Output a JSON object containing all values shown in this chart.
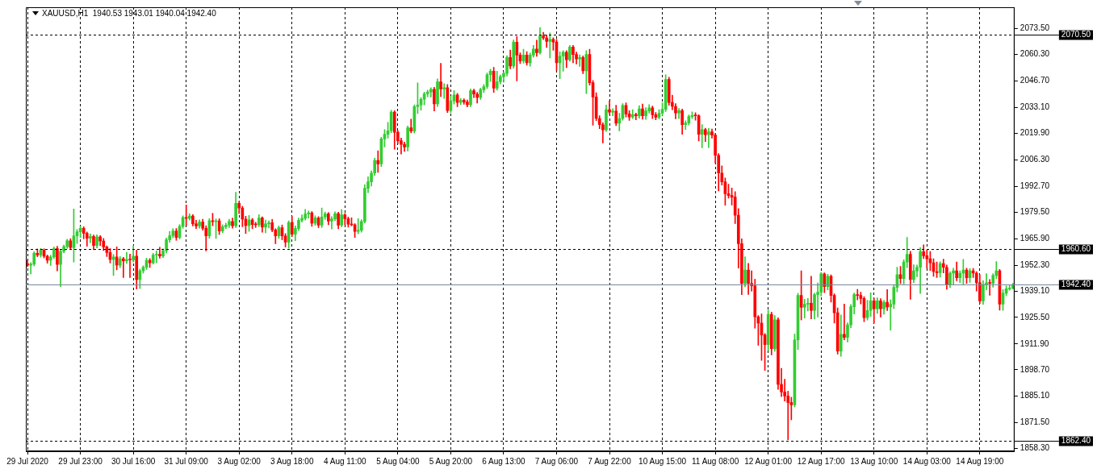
{
  "chart_data": {
    "type": "candlestick",
    "title": "XAUUSD,H1  1940.53 1943.01 1940.04 1942.40",
    "categories": [
      "29 Jul 2020",
      null,
      null,
      null,
      null,
      null,
      null,
      null,
      null,
      null,
      null,
      null,
      null,
      null,
      null,
      null,
      "29 Jul 23:00",
      null,
      null,
      null,
      null,
      null,
      null,
      null,
      null,
      null,
      null,
      null,
      null,
      null,
      null,
      null,
      "30 Jul 16:00",
      null,
      null,
      null,
      null,
      null,
      null,
      null,
      null,
      null,
      null,
      null,
      null,
      null,
      null,
      null,
      "31 Jul 09:00",
      null,
      null,
      null,
      null,
      null,
      null,
      null,
      null,
      null,
      null,
      null,
      null,
      null,
      null,
      null,
      "3 Aug 02:00",
      null,
      null,
      null,
      null,
      null,
      null,
      null,
      null,
      null,
      null,
      null,
      null,
      null,
      null,
      null,
      "3 Aug 18:00",
      null,
      null,
      null,
      null,
      null,
      null,
      null,
      null,
      null,
      null,
      null,
      null,
      null,
      null,
      null,
      "4 Aug 11:00",
      null,
      null,
      null,
      null,
      null,
      null,
      null,
      null,
      null,
      null,
      null,
      null,
      null,
      null,
      null,
      "5 Aug 04:00",
      null,
      null,
      null,
      null,
      null,
      null,
      null,
      null,
      null,
      null,
      null,
      null,
      null,
      null,
      null,
      "5 Aug 20:00",
      null,
      null,
      null,
      null,
      null,
      null,
      null,
      null,
      null,
      null,
      null,
      null,
      null,
      null,
      null,
      "6 Aug 13:00",
      null,
      null,
      null,
      null,
      null,
      null,
      null,
      null,
      null,
      null,
      null,
      null,
      null,
      null,
      null,
      "7 Aug 06:00",
      null,
      null,
      null,
      null,
      null,
      null,
      null,
      null,
      null,
      null,
      null,
      null,
      null,
      null,
      null,
      "7 Aug 22:00",
      null,
      null,
      null,
      null,
      null,
      null,
      null,
      null,
      null,
      null,
      null,
      null,
      null,
      null,
      null,
      "10 Aug 15:00",
      null,
      null,
      null,
      null,
      null,
      null,
      null,
      null,
      null,
      null,
      null,
      null,
      null,
      null,
      null,
      "11 Aug 08:00",
      null,
      null,
      null,
      null,
      null,
      null,
      null,
      null,
      null,
      null,
      null,
      null,
      null,
      null,
      null,
      "12 Aug 01:00",
      null,
      null,
      null,
      null,
      null,
      null,
      null,
      null,
      null,
      null,
      null,
      null,
      null,
      null,
      null,
      "12 Aug 17:00",
      null,
      null,
      null,
      null,
      null,
      null,
      null,
      null,
      null,
      null,
      null,
      null,
      null,
      null,
      null,
      "13 Aug 10:00",
      null,
      null,
      null,
      null,
      null,
      null,
      null,
      null,
      null,
      null,
      null,
      null,
      null,
      null,
      null,
      "14 Aug 03:00",
      null,
      null,
      null,
      null,
      null,
      null,
      null,
      null,
      null,
      null,
      null,
      null,
      null,
      null,
      null,
      "14 Aug 19:00",
      null,
      null,
      null,
      null,
      null,
      null,
      null,
      null,
      null,
      null
    ],
    "ohlc": [
      [
        1953.1,
        1955.0,
        1951.5,
        1952.3
      ],
      [
        1952.3,
        1953.6,
        1947.8,
        1952.8
      ],
      [
        1952.8,
        1959.2,
        1951.9,
        1958.4
      ],
      [
        1958.4,
        1960.6,
        1956.6,
        1957.5
      ],
      [
        1957.5,
        1960.9,
        1956.4,
        1960.0
      ],
      [
        1960.0,
        1960.7,
        1956.0,
        1956.9
      ],
      [
        1956.9,
        1957.5,
        1953.3,
        1954.8
      ],
      [
        1954.8,
        1957.4,
        1952.1,
        1956.5
      ],
      [
        1956.5,
        1961.6,
        1955.7,
        1960.8
      ],
      [
        1960.8,
        1962.0,
        1949.4,
        1952.7
      ],
      [
        1952.7,
        1960.3,
        1941.3,
        1959.4
      ],
      [
        1959.4,
        1962.6,
        1958.5,
        1961.8
      ],
      [
        1961.8,
        1965.6,
        1960.9,
        1964.8
      ],
      [
        1964.8,
        1965.9,
        1960.4,
        1961.3
      ],
      [
        1961.3,
        1981.1,
        1953.9,
        1967.3
      ],
      [
        1967.3,
        1970.6,
        1963.4,
        1969.4
      ],
      [
        1969.4,
        1972.3,
        1966.4,
        1971.2
      ],
      [
        1971.2,
        1972.0,
        1965.8,
        1968.6
      ],
      [
        1968.6,
        1969.3,
        1962.0,
        1966.1
      ],
      [
        1966.1,
        1968.3,
        1963.8,
        1967.0
      ],
      [
        1967.0,
        1967.8,
        1960.2,
        1962.4
      ],
      [
        1962.4,
        1967.9,
        1961.1,
        1966.8
      ],
      [
        1966.8,
        1967.5,
        1962.3,
        1964.7
      ],
      [
        1964.7,
        1966.0,
        1959.8,
        1961.6
      ],
      [
        1961.6,
        1962.2,
        1956.7,
        1958.8
      ],
      [
        1958.8,
        1960.8,
        1953.4,
        1955.2
      ],
      [
        1955.2,
        1957.8,
        1947.0,
        1956.5
      ],
      [
        1956.5,
        1961.7,
        1949.9,
        1952.3
      ],
      [
        1952.3,
        1956.7,
        1951.0,
        1955.6
      ],
      [
        1955.6,
        1956.3,
        1946.0,
        1954.5
      ],
      [
        1954.5,
        1958.9,
        1953.2,
        1955.2
      ],
      [
        1955.2,
        1958.0,
        1946.0,
        1955.0
      ],
      [
        1955.0,
        1962.3,
        1953.9,
        1956.9
      ],
      [
        1956.9,
        1960.0,
        1940.1,
        1944.9
      ],
      [
        1944.9,
        1950.3,
        1940.3,
        1949.4
      ],
      [
        1949.4,
        1952.0,
        1948.2,
        1951.2
      ],
      [
        1951.2,
        1955.9,
        1950.1,
        1954.8
      ],
      [
        1954.8,
        1955.7,
        1951.1,
        1953.5
      ],
      [
        1953.5,
        1958.4,
        1952.8,
        1957.5
      ],
      [
        1957.5,
        1959.6,
        1953.5,
        1957.9
      ],
      [
        1957.9,
        1961.5,
        1955.9,
        1957.0
      ],
      [
        1957.0,
        1960.6,
        1956.2,
        1959.7
      ],
      [
        1959.7,
        1966.2,
        1958.5,
        1965.3
      ],
      [
        1965.3,
        1969.6,
        1964.0,
        1967.4
      ],
      [
        1967.4,
        1971.0,
        1966.3,
        1969.8
      ],
      [
        1969.8,
        1971.1,
        1965.0,
        1966.5
      ],
      [
        1966.5,
        1973.1,
        1965.7,
        1972.2
      ],
      [
        1972.2,
        1977.6,
        1971.2,
        1976.7
      ],
      [
        1976.7,
        1983.2,
        1972.6,
        1976.3
      ],
      [
        1976.3,
        1978.7,
        1975.4,
        1977.5
      ],
      [
        1977.5,
        1978.2,
        1972.4,
        1973.5
      ],
      [
        1973.5,
        1975.3,
        1971.0,
        1972.4
      ],
      [
        1972.4,
        1975.5,
        1971.3,
        1974.4
      ],
      [
        1974.4,
        1975.8,
        1970.2,
        1971.2
      ],
      [
        1971.2,
        1972.5,
        1959.6,
        1967.3
      ],
      [
        1967.3,
        1976.2,
        1966.1,
        1975.1
      ],
      [
        1975.1,
        1978.9,
        1972.5,
        1974.6
      ],
      [
        1974.6,
        1976.0,
        1966.0,
        1975.0
      ],
      [
        1975.0,
        1976.1,
        1968.0,
        1969.8
      ],
      [
        1969.8,
        1973.0,
        1968.9,
        1972.0
      ],
      [
        1972.0,
        1973.9,
        1971.0,
        1972.8
      ],
      [
        1972.8,
        1975.8,
        1971.6,
        1974.7
      ],
      [
        1974.7,
        1976.4,
        1971.2,
        1972.5
      ],
      [
        1972.5,
        1989.7,
        1971.6,
        1984.0
      ],
      [
        1984.0,
        1985.0,
        1978.7,
        1981.6
      ],
      [
        1981.6,
        1982.5,
        1972.0,
        1975.9
      ],
      [
        1975.9,
        1977.4,
        1968.5,
        1972.6
      ],
      [
        1972.6,
        1977.8,
        1969.6,
        1975.5
      ],
      [
        1975.5,
        1976.3,
        1971.0,
        1973.1
      ],
      [
        1973.1,
        1974.3,
        1971.6,
        1973.0
      ],
      [
        1973.0,
        1978.2,
        1972.0,
        1976.5
      ],
      [
        1976.5,
        1977.1,
        1969.2,
        1971.8
      ],
      [
        1971.8,
        1975.4,
        1968.9,
        1973.5
      ],
      [
        1973.5,
        1975.0,
        1971.4,
        1974.0
      ],
      [
        1974.0,
        1975.8,
        1969.4,
        1970.4
      ],
      [
        1970.4,
        1971.0,
        1963.3,
        1967.3
      ],
      [
        1967.3,
        1972.4,
        1966.0,
        1971.5
      ],
      [
        1971.5,
        1972.9,
        1965.3,
        1967.3
      ],
      [
        1967.3,
        1968.5,
        1961.6,
        1964.1
      ],
      [
        1964.1,
        1975.0,
        1961.0,
        1974.2
      ],
      [
        1974.2,
        1977.3,
        1967.0,
        1968.2
      ],
      [
        1968.2,
        1972.4,
        1964.8,
        1971.1
      ],
      [
        1971.1,
        1976.5,
        1970.0,
        1975.3
      ],
      [
        1975.3,
        1978.1,
        1974.3,
        1976.3
      ],
      [
        1976.3,
        1980.9,
        1975.4,
        1978.5
      ],
      [
        1978.5,
        1980.1,
        1976.4,
        1979.1
      ],
      [
        1979.1,
        1979.8,
        1972.2,
        1973.8
      ],
      [
        1973.8,
        1977.6,
        1972.7,
        1976.5
      ],
      [
        1976.5,
        1977.2,
        1971.5,
        1972.8
      ],
      [
        1972.8,
        1981.6,
        1971.6,
        1977.0
      ],
      [
        1977.0,
        1979.5,
        1975.7,
        1978.6
      ],
      [
        1978.6,
        1979.3,
        1973.0,
        1974.9
      ],
      [
        1974.9,
        1977.2,
        1970.8,
        1976.0
      ],
      [
        1976.0,
        1979.6,
        1975.1,
        1978.7
      ],
      [
        1978.7,
        1979.4,
        1970.9,
        1972.8
      ],
      [
        1972.8,
        1980.8,
        1971.9,
        1978.1
      ],
      [
        1978.1,
        1978.8,
        1973.1,
        1976.1
      ],
      [
        1976.1,
        1977.0,
        1971.8,
        1973.3
      ],
      [
        1973.3,
        1976.6,
        1972.4,
        1973.0
      ],
      [
        1973.0,
        1973.6,
        1966.5,
        1969.6
      ],
      [
        1969.6,
        1976.2,
        1968.4,
        1970.2
      ],
      [
        1970.2,
        1975.6,
        1969.2,
        1974.7
      ],
      [
        1974.7,
        1993.6,
        1973.9,
        1991.7
      ],
      [
        1991.7,
        1997.6,
        1989.4,
        1995.0
      ],
      [
        1995.0,
        2000.6,
        1992.8,
        1999.5
      ],
      [
        1999.5,
        2007.1,
        1998.3,
        2006.0
      ],
      [
        2006.0,
        2010.9,
        1999.9,
        2004.2
      ],
      [
        2004.2,
        2017.9,
        2002.9,
        2017.0
      ],
      [
        2017.0,
        2021.8,
        2012.9,
        2019.4
      ],
      [
        2019.4,
        2025.5,
        2017.4,
        2021.2
      ],
      [
        2021.2,
        2031.7,
        2020.2,
        2030.8
      ],
      [
        2030.8,
        2031.5,
        2011.7,
        2020.4
      ],
      [
        2020.4,
        2021.3,
        2014.5,
        2016.1
      ],
      [
        2016.1,
        2017.4,
        2009.3,
        2014.2
      ],
      [
        2014.2,
        2015.4,
        2010.6,
        2012.9
      ],
      [
        2012.9,
        2023.6,
        2010.8,
        2022.7
      ],
      [
        2022.7,
        2027.2,
        2020.1,
        2021.0
      ],
      [
        2021.0,
        2034.5,
        2020.0,
        2033.6
      ],
      [
        2033.6,
        2045.7,
        2030.0,
        2034.4
      ],
      [
        2034.4,
        2038.2,
        2031.8,
        2037.3
      ],
      [
        2037.3,
        2041.0,
        2034.5,
        2040.1
      ],
      [
        2040.1,
        2042.0,
        2038.6,
        2041.1
      ],
      [
        2041.1,
        2043.3,
        2038.5,
        2042.4
      ],
      [
        2042.4,
        2043.5,
        2031.3,
        2035.0
      ],
      [
        2035.0,
        2047.8,
        2033.6,
        2046.3
      ],
      [
        2046.3,
        2055.8,
        2038.7,
        2042.6
      ],
      [
        2042.6,
        2045.3,
        2037.8,
        2043.3
      ],
      [
        2043.3,
        2044.9,
        2030.5,
        2031.6
      ],
      [
        2031.6,
        2038.9,
        2030.4,
        2036.5
      ],
      [
        2036.5,
        2041.8,
        2034.9,
        2039.5
      ],
      [
        2039.5,
        2040.4,
        2033.5,
        2035.7
      ],
      [
        2035.7,
        2037.8,
        2034.6,
        2036.9
      ],
      [
        2036.9,
        2037.6,
        2034.8,
        2035.9
      ],
      [
        2035.9,
        2037.0,
        2033.4,
        2034.6
      ],
      [
        2034.6,
        2042.6,
        2033.5,
        2041.7
      ],
      [
        2041.7,
        2042.5,
        2038.2,
        2040.0
      ],
      [
        2040.0,
        2040.9,
        2035.4,
        2038.3
      ],
      [
        2038.3,
        2043.1,
        2037.2,
        2042.2
      ],
      [
        2042.2,
        2044.9,
        2040.7,
        2043.8
      ],
      [
        2043.8,
        2050.8,
        2042.8,
        2049.9
      ],
      [
        2049.9,
        2052.8,
        2046.4,
        2051.7
      ],
      [
        2051.7,
        2053.7,
        2040.8,
        2043.0
      ],
      [
        2043.0,
        2051.7,
        2042.0,
        2046.3
      ],
      [
        2046.3,
        2049.8,
        2045.2,
        2048.9
      ],
      [
        2048.9,
        2051.5,
        2046.1,
        2050.6
      ],
      [
        2050.6,
        2059.7,
        2049.2,
        2058.8
      ],
      [
        2058.8,
        2062.6,
        2052.9,
        2054.4
      ],
      [
        2054.4,
        2067.7,
        2053.2,
        2066.6
      ],
      [
        2066.6,
        2069.5,
        2046.7,
        2060.0
      ],
      [
        2060.0,
        2061.1,
        2055.6,
        2057.0
      ],
      [
        2057.0,
        2063.0,
        2055.8,
        2060.0
      ],
      [
        2060.0,
        2061.7,
        2054.8,
        2056.0
      ],
      [
        2056.0,
        2061.0,
        2054.3,
        2060.0
      ],
      [
        2060.0,
        2065.0,
        2058.9,
        2063.1
      ],
      [
        2063.1,
        2067.6,
        2059.3,
        2061.2
      ],
      [
        2061.2,
        2074.0,
        2060.5,
        2069.8
      ],
      [
        2069.8,
        2071.7,
        2067.9,
        2068.8
      ],
      [
        2068.8,
        2070.3,
        2063.9,
        2067.0
      ],
      [
        2067.0,
        2071.4,
        2058.5,
        2068.0
      ],
      [
        2068.0,
        2068.9,
        2062.4,
        2066.7
      ],
      [
        2066.7,
        2068.0,
        2052.1,
        2056.0
      ],
      [
        2056.0,
        2061.6,
        2047.9,
        2059.5
      ],
      [
        2059.5,
        2062.3,
        2051.7,
        2061.4
      ],
      [
        2061.4,
        2062.3,
        2053.6,
        2057.6
      ],
      [
        2057.6,
        2064.9,
        2056.9,
        2064.1
      ],
      [
        2064.1,
        2064.9,
        2056.0,
        2060.3
      ],
      [
        2060.3,
        2061.5,
        2055.4,
        2058.0
      ],
      [
        2058.0,
        2060.1,
        2054.2,
        2058.8
      ],
      [
        2058.8,
        2059.6,
        2050.5,
        2051.9
      ],
      [
        2051.9,
        2062.3,
        2040.2,
        2060.3
      ],
      [
        2060.3,
        2063.0,
        2044.6,
        2045.8
      ],
      [
        2045.8,
        2047.0,
        2024.0,
        2038.5
      ],
      [
        2038.5,
        2040.7,
        2026.4,
        2027.5
      ],
      [
        2027.5,
        2028.9,
        2022.3,
        2024.3
      ],
      [
        2024.3,
        2025.3,
        2014.9,
        2021.6
      ],
      [
        2021.6,
        2034.4,
        2020.8,
        2032.0
      ],
      [
        2032.0,
        2036.6,
        2029.6,
        2030.7
      ],
      [
        2030.7,
        2032.5,
        2028.9,
        2031.3
      ],
      [
        2031.3,
        2034.3,
        2023.8,
        2025.0
      ],
      [
        2025.0,
        2030.2,
        2021.1,
        2027.5
      ],
      [
        2027.5,
        2035.1,
        2026.6,
        2034.2
      ],
      [
        2034.2,
        2035.5,
        2028.3,
        2029.8
      ],
      [
        2029.8,
        2031.5,
        2026.5,
        2028.3
      ],
      [
        2028.3,
        2032.0,
        2027.4,
        2029.5
      ],
      [
        2029.5,
        2030.3,
        2026.8,
        2028.9
      ],
      [
        2028.9,
        2034.1,
        2027.6,
        2032.4
      ],
      [
        2032.4,
        2034.9,
        2027.1,
        2028.9
      ],
      [
        2028.9,
        2033.0,
        2027.0,
        2031.4
      ],
      [
        2031.4,
        2034.6,
        2030.2,
        2032.9
      ],
      [
        2032.9,
        2033.9,
        2027.4,
        2029.4
      ],
      [
        2029.4,
        2030.6,
        2026.8,
        2028.2
      ],
      [
        2028.2,
        2032.0,
        2027.2,
        2030.2
      ],
      [
        2030.2,
        2035.5,
        2029.1,
        2032.2
      ],
      [
        2032.2,
        2049.9,
        2031.0,
        2047.5
      ],
      [
        2047.5,
        2048.6,
        2034.2,
        2035.7
      ],
      [
        2035.7,
        2039.4,
        2032.0,
        2033.7
      ],
      [
        2033.7,
        2035.1,
        2027.3,
        2030.3
      ],
      [
        2030.3,
        2032.6,
        2027.4,
        2031.5
      ],
      [
        2031.5,
        2032.3,
        2019.4,
        2024.3
      ],
      [
        2024.3,
        2026.3,
        2021.8,
        2025.2
      ],
      [
        2025.2,
        2029.3,
        2024.1,
        2028.5
      ],
      [
        2028.5,
        2030.9,
        2027.4,
        2029.0
      ],
      [
        2029.0,
        2030.5,
        2026.6,
        2028.9
      ],
      [
        2028.9,
        2029.4,
        2016.0,
        2019.4
      ],
      [
        2019.4,
        2024.4,
        2012.5,
        2021.8
      ],
      [
        2021.8,
        2022.5,
        2015.7,
        2019.2
      ],
      [
        2019.2,
        2022.4,
        2012.6,
        2020.6
      ],
      [
        2020.6,
        2022.1,
        2017.4,
        2019.0
      ],
      [
        2019.0,
        2019.9,
        2004.6,
        2008.6
      ],
      [
        2008.6,
        2009.5,
        1990.4,
        1999.5
      ],
      [
        1999.5,
        2003.2,
        1993.3,
        1995.0
      ],
      [
        1995.0,
        1997.0,
        1983.0,
        1988.9
      ],
      [
        1988.9,
        1993.8,
        1986.6,
        1988.0
      ],
      [
        1988.0,
        1991.8,
        1983.1,
        1987.2
      ],
      [
        1987.2,
        1990.0,
        1973.6,
        1977.9
      ],
      [
        1977.9,
        1981.3,
        1950.8,
        1963.3
      ],
      [
        1963.3,
        1965.8,
        1937.2,
        1942.9
      ],
      [
        1942.9,
        1956.6,
        1941.2,
        1949.8
      ],
      [
        1949.8,
        1953.2,
        1937.3,
        1942.9
      ],
      [
        1942.9,
        1949.4,
        1939.0,
        1941.7
      ],
      [
        1941.7,
        1945.1,
        1920.0,
        1925.8
      ],
      [
        1925.8,
        1926.5,
        1911.2,
        1922.6
      ],
      [
        1922.6,
        1927.3,
        1903.5,
        1916.5
      ],
      [
        1916.5,
        1917.3,
        1898.3,
        1911.6
      ],
      [
        1911.6,
        1929.3,
        1908.5,
        1927.1
      ],
      [
        1927.1,
        1928.2,
        1906.3,
        1909.5
      ],
      [
        1909.5,
        1926.5,
        1908.2,
        1924.3
      ],
      [
        1924.3,
        1925.3,
        1888.6,
        1891.2
      ],
      [
        1891.2,
        1899.4,
        1884.9,
        1887.3
      ],
      [
        1887.3,
        1893.8,
        1882.6,
        1885.2
      ],
      [
        1885.2,
        1887.7,
        1862.8,
        1881.9
      ],
      [
        1881.9,
        1884.6,
        1873.0,
        1880.7
      ],
      [
        1880.7,
        1917.0,
        1879.6,
        1914.0
      ],
      [
        1914.0,
        1937.9,
        1909.0,
        1936.8
      ],
      [
        1936.8,
        1949.4,
        1924.2,
        1930.7
      ],
      [
        1930.7,
        1934.8,
        1925.2,
        1932.3
      ],
      [
        1932.3,
        1935.3,
        1928.8,
        1932.8
      ],
      [
        1932.8,
        1946.6,
        1924.8,
        1929.1
      ],
      [
        1929.1,
        1937.9,
        1924.7,
        1937.2
      ],
      [
        1937.2,
        1943.2,
        1925.7,
        1938.4
      ],
      [
        1938.4,
        1948.6,
        1936.4,
        1947.8
      ],
      [
        1947.8,
        1948.4,
        1938.2,
        1941.3
      ],
      [
        1941.3,
        1947.6,
        1939.6,
        1946.6
      ],
      [
        1946.6,
        1947.3,
        1933.3,
        1936.8
      ],
      [
        1936.8,
        1937.6,
        1922.6,
        1927.9
      ],
      [
        1927.9,
        1930.4,
        1906.7,
        1908.3
      ],
      [
        1908.3,
        1926.8,
        1905.6,
        1916.9
      ],
      [
        1916.9,
        1932.4,
        1914.0,
        1915.3
      ],
      [
        1915.3,
        1922.8,
        1912.9,
        1921.7
      ],
      [
        1921.7,
        1932.2,
        1920.2,
        1931.0
      ],
      [
        1931.0,
        1938.0,
        1927.3,
        1937.2
      ],
      [
        1937.2,
        1939.9,
        1934.5,
        1936.8
      ],
      [
        1936.8,
        1938.4,
        1932.4,
        1935.2
      ],
      [
        1935.2,
        1936.2,
        1923.3,
        1925.4
      ],
      [
        1925.4,
        1934.3,
        1924.2,
        1929.1
      ],
      [
        1929.1,
        1938.1,
        1926.0,
        1934.0
      ],
      [
        1934.0,
        1935.3,
        1922.6,
        1929.9
      ],
      [
        1929.9,
        1935.6,
        1927.6,
        1934.0
      ],
      [
        1934.0,
        1935.1,
        1925.7,
        1929.9
      ],
      [
        1929.9,
        1934.2,
        1927.2,
        1933.3
      ],
      [
        1933.3,
        1939.8,
        1929.0,
        1930.9
      ],
      [
        1930.9,
        1934.5,
        1919.0,
        1932.3
      ],
      [
        1932.3,
        1942.4,
        1930.0,
        1940.9
      ],
      [
        1940.9,
        1951.3,
        1938.6,
        1947.4
      ],
      [
        1947.4,
        1951.7,
        1942.9,
        1945.4
      ],
      [
        1945.4,
        1955.1,
        1942.6,
        1953.9
      ],
      [
        1953.9,
        1966.5,
        1951.0,
        1957.9
      ],
      [
        1957.9,
        1959.4,
        1934.8,
        1944.9
      ],
      [
        1944.9,
        1952.5,
        1943.3,
        1949.4
      ],
      [
        1949.4,
        1952.4,
        1946.4,
        1951.2
      ],
      [
        1951.2,
        1961.3,
        1937.8,
        1959.2
      ],
      [
        1959.2,
        1962.7,
        1955.7,
        1957.1
      ],
      [
        1957.1,
        1960.0,
        1950.8,
        1955.6
      ],
      [
        1955.6,
        1959.3,
        1949.6,
        1953.5
      ],
      [
        1953.5,
        1955.6,
        1946.6,
        1949.0
      ],
      [
        1949.0,
        1953.9,
        1946.0,
        1948.4
      ],
      [
        1948.4,
        1954.0,
        1946.2,
        1953.1
      ],
      [
        1953.1,
        1955.4,
        1948.3,
        1951.2
      ],
      [
        1951.2,
        1952.4,
        1940.0,
        1942.5
      ],
      [
        1942.5,
        1949.0,
        1940.8,
        1948.2
      ],
      [
        1948.2,
        1950.7,
        1942.2,
        1949.4
      ],
      [
        1949.4,
        1953.9,
        1944.3,
        1945.8
      ],
      [
        1945.8,
        1949.4,
        1943.4,
        1948.2
      ],
      [
        1948.2,
        1955.3,
        1942.2,
        1949.8
      ],
      [
        1949.8,
        1950.7,
        1943.0,
        1945.8
      ],
      [
        1945.8,
        1950.5,
        1943.5,
        1949.4
      ],
      [
        1949.4,
        1950.6,
        1945.9,
        1948.2
      ],
      [
        1948.2,
        1949.0,
        1939.0,
        1943.3
      ],
      [
        1943.3,
        1947.4,
        1932.6,
        1934.0
      ],
      [
        1934.0,
        1944.3,
        1932.2,
        1942.5
      ],
      [
        1942.5,
        1948.0,
        1939.6,
        1943.3
      ],
      [
        1943.3,
        1945.0,
        1936.9,
        1943.0
      ],
      [
        1943.0,
        1948.0,
        1941.0,
        1947.0
      ],
      [
        1947.0,
        1954.1,
        1945.3,
        1949.4
      ],
      [
        1949.4,
        1950.1,
        1929.2,
        1932.3
      ],
      [
        1932.3,
        1939.8,
        1929.1,
        1937.9
      ],
      [
        1937.9,
        1941.6,
        1936.7,
        1940.2
      ],
      [
        1940.2,
        1941.9,
        1939.4,
        1940.53
      ],
      [
        1940.53,
        1943.01,
        1940.04,
        1942.4
      ]
    ],
    "colors": [
      "#ff0000",
      "#32cd32",
      "#32cd32",
      "#ff0000",
      "#32cd32",
      "#ff0000",
      "#ff0000",
      "#32cd32",
      "#32cd32",
      "#ff0000",
      "#32cd32",
      "#32cd32",
      "#32cd32",
      "#ff0000",
      "#32cd32",
      "#32cd32",
      "#32cd32",
      "#ff0000",
      "#ff0000",
      "#32cd32",
      "#ff0000",
      "#32cd32",
      "#ff0000",
      "#ff0000",
      "#ff0000",
      "#ff0000",
      "#32cd32",
      "#ff0000",
      "#32cd32",
      "#ff0000",
      "#32cd32",
      "#ff0000",
      "#32cd32",
      "#ff0000",
      "#32cd32",
      "#32cd32",
      "#32cd32",
      "#ff0000",
      "#32cd32",
      "#32cd32",
      "#ff0000",
      "#32cd32",
      "#32cd32",
      "#32cd32",
      "#32cd32",
      "#ff0000",
      "#32cd32",
      "#32cd32",
      "#ff0000",
      "#32cd32",
      "#ff0000",
      "#ff0000",
      "#32cd32",
      "#ff0000",
      "#ff0000",
      "#32cd32",
      "#ff0000",
      "#32cd32",
      "#ff0000",
      "#32cd32",
      "#32cd32",
      "#32cd32",
      "#ff0000",
      "#32cd32",
      "#ff0000",
      "#ff0000",
      "#ff0000",
      "#32cd32",
      "#ff0000",
      "#ff0000",
      "#32cd32",
      "#ff0000",
      "#32cd32",
      "#32cd32",
      "#ff0000",
      "#ff0000",
      "#32cd32",
      "#ff0000",
      "#ff0000",
      "#32cd32",
      "#ff0000",
      "#32cd32",
      "#32cd32",
      "#32cd32",
      "#32cd32",
      "#32cd32",
      "#ff0000",
      "#32cd32",
      "#ff0000",
      "#32cd32",
      "#32cd32",
      "#ff0000",
      "#32cd32",
      "#32cd32",
      "#ff0000",
      "#32cd32",
      "#ff0000",
      "#ff0000",
      "#ff0000",
      "#ff0000",
      "#32cd32",
      "#32cd32",
      "#32cd32",
      "#32cd32",
      "#32cd32",
      "#32cd32",
      "#ff0000",
      "#32cd32",
      "#32cd32",
      "#32cd32",
      "#32cd32",
      "#ff0000",
      "#ff0000",
      "#ff0000",
      "#ff0000",
      "#32cd32",
      "#ff0000",
      "#32cd32",
      "#32cd32",
      "#32cd32",
      "#32cd32",
      "#32cd32",
      "#32cd32",
      "#ff0000",
      "#32cd32",
      "#ff0000",
      "#32cd32",
      "#ff0000",
      "#32cd32",
      "#32cd32",
      "#ff0000",
      "#32cd32",
      "#ff0000",
      "#ff0000",
      "#32cd32",
      "#ff0000",
      "#ff0000",
      "#32cd32",
      "#32cd32",
      "#32cd32",
      "#32cd32",
      "#ff0000",
      "#32cd32",
      "#32cd32",
      "#32cd32",
      "#32cd32",
      "#ff0000",
      "#32cd32",
      "#ff0000",
      "#ff0000",
      "#32cd32",
      "#ff0000",
      "#32cd32",
      "#32cd32",
      "#ff0000",
      "#32cd32",
      "#ff0000",
      "#ff0000",
      "#32cd32",
      "#ff0000",
      "#ff0000",
      "#32cd32",
      "#32cd32",
      "#ff0000",
      "#32cd32",
      "#ff0000",
      "#ff0000",
      "#32cd32",
      "#ff0000",
      "#32cd32",
      "#ff0000",
      "#ff0000",
      "#ff0000",
      "#ff0000",
      "#ff0000",
      "#32cd32",
      "#ff0000",
      "#32cd32",
      "#ff0000",
      "#32cd32",
      "#32cd32",
      "#ff0000",
      "#ff0000",
      "#32cd32",
      "#ff0000",
      "#32cd32",
      "#ff0000",
      "#32cd32",
      "#32cd32",
      "#ff0000",
      "#ff0000",
      "#32cd32",
      "#32cd32",
      "#32cd32",
      "#ff0000",
      "#ff0000",
      "#ff0000",
      "#32cd32",
      "#ff0000",
      "#32cd32",
      "#32cd32",
      "#32cd32",
      "#ff0000",
      "#ff0000",
      "#32cd32",
      "#ff0000",
      "#32cd32",
      "#ff0000",
      "#ff0000",
      "#ff0000",
      "#ff0000",
      "#ff0000",
      "#ff0000",
      "#ff0000",
      "#ff0000",
      "#ff0000",
      "#ff0000",
      "#32cd32",
      "#ff0000",
      "#ff0000",
      "#ff0000",
      "#ff0000",
      "#ff0000",
      "#ff0000",
      "#32cd32",
      "#ff0000",
      "#32cd32",
      "#ff0000",
      "#ff0000",
      "#ff0000",
      "#ff0000",
      "#ff0000",
      "#32cd32",
      "#32cd32",
      "#ff0000",
      "#32cd32",
      "#32cd32",
      "#ff0000",
      "#32cd32",
      "#32cd32",
      "#32cd32",
      "#ff0000",
      "#32cd32",
      "#ff0000",
      "#ff0000",
      "#ff0000",
      "#32cd32",
      "#ff0000",
      "#32cd32",
      "#32cd32",
      "#32cd32",
      "#ff0000",
      "#ff0000",
      "#ff0000",
      "#32cd32",
      "#32cd32",
      "#ff0000",
      "#32cd32",
      "#ff0000",
      "#32cd32",
      "#ff0000",
      "#32cd32",
      "#32cd32",
      "#32cd32",
      "#ff0000",
      "#32cd32",
      "#32cd32",
      "#ff0000",
      "#32cd32",
      "#32cd32",
      "#32cd32",
      "#ff0000",
      "#ff0000",
      "#ff0000",
      "#ff0000",
      "#ff0000",
      "#32cd32",
      "#ff0000",
      "#ff0000",
      "#32cd32",
      "#32cd32",
      "#ff0000",
      "#32cd32",
      "#32cd32",
      "#ff0000",
      "#32cd32",
      "#ff0000",
      "#ff0000",
      "#ff0000",
      "#32cd32",
      "#32cd32",
      "#ff0000",
      "#32cd32",
      "#32cd32",
      "#ff0000",
      "#32cd32",
      "#32cd32",
      "#32cd32",
      "#32cd32"
    ],
    "ylim": [
      1856.9,
      2084.5
    ],
    "yticks": [
      {
        "value": 1858.3,
        "label": "1858.30"
      },
      {
        "value": 1871.5,
        "label": "1871.50"
      },
      {
        "value": 1885.1,
        "label": "1885.10"
      },
      {
        "value": 1898.7,
        "label": "1898.70"
      },
      {
        "value": 1911.9,
        "label": "1911.90"
      },
      {
        "value": 1925.5,
        "label": "1925.50"
      },
      {
        "value": 1939.1,
        "label": "1939.10"
      },
      {
        "value": 1952.3,
        "label": "1952.30"
      },
      {
        "value": 1965.9,
        "label": "1965.90"
      },
      {
        "value": 1979.5,
        "label": "1979.50"
      },
      {
        "value": 1992.7,
        "label": "1992.70"
      },
      {
        "value": 2006.3,
        "label": "2006.30"
      },
      {
        "value": 2019.9,
        "label": "2019.90"
      },
      {
        "value": 2033.1,
        "label": "2033.10"
      },
      {
        "value": 2046.7,
        "label": "2046.70"
      },
      {
        "value": 2060.3,
        "label": "2060.30"
      },
      {
        "value": 2073.5,
        "label": "2073.50"
      }
    ],
    "ref_lines": [
      {
        "axis": "y",
        "value": 2070.5,
        "label": "2070.50",
        "color": "#000000",
        "line_style": "dashed"
      },
      {
        "axis": "y",
        "value": 1960.6,
        "label": "1960.60",
        "color": "#000000",
        "line_style": "dashed"
      },
      {
        "axis": "y",
        "value": 1862.4,
        "label": "1862.40",
        "color": "#000000",
        "line_style": "dashed"
      },
      {
        "axis": "y",
        "value": 1942.4,
        "label": "1942.40",
        "color": "#778899",
        "line_style": "solid"
      }
    ],
    "grid": "x",
    "legend": false
  }
}
